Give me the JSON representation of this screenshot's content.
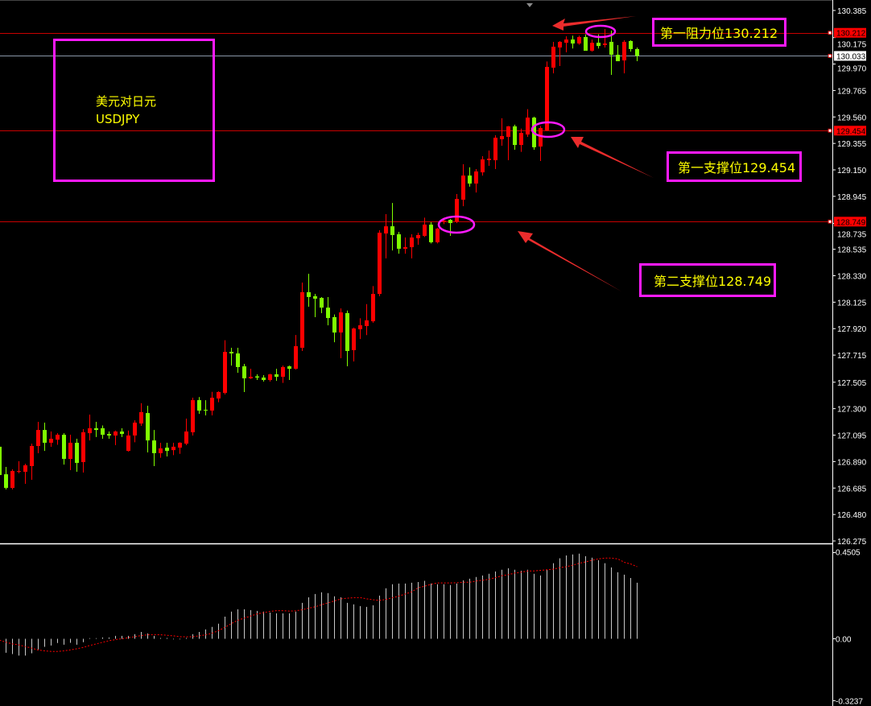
{
  "chart_data": [
    {
      "type": "candlestick",
      "symbol_label": "美元对日元",
      "symbol_code": "USDJPY",
      "ylim": [
        126.275,
        130.385
      ],
      "y_ticks": [
        "130.385",
        "130.175",
        "129.970",
        "129.765",
        "129.560",
        "129.355",
        "129.150",
        "128.945",
        "128.735",
        "128.535",
        "128.330",
        "128.125",
        "127.920",
        "127.715",
        "127.505",
        "127.300",
        "127.095",
        "126.890",
        "126.685",
        "126.480",
        "126.275"
      ],
      "colors": {
        "bullish": "#ff0000",
        "bearish": "#80ff00",
        "background": "#000000",
        "level_line": "#c80000",
        "bid_line": "#8a97a8"
      },
      "candles_ohlc": [
        [
          127.005,
          127.02,
          126.76,
          126.786
        ],
        [
          126.792,
          126.849,
          126.674,
          126.686
        ],
        [
          126.686,
          126.83,
          126.674,
          126.817
        ],
        [
          126.815,
          126.893,
          126.8,
          126.817
        ],
        [
          126.811,
          126.873,
          126.718,
          126.861
        ],
        [
          126.855,
          127.029,
          126.749,
          127.011
        ],
        [
          127.011,
          127.198,
          126.955,
          127.135
        ],
        [
          127.135,
          127.192,
          126.973,
          127.036
        ],
        [
          127.036,
          127.123,
          127.005,
          127.067
        ],
        [
          127.06,
          127.11,
          127.02,
          127.098
        ],
        [
          127.098,
          127.11,
          126.867,
          126.911
        ],
        [
          126.911,
          127.098,
          126.824,
          127.036
        ],
        [
          127.036,
          127.067,
          126.811,
          126.88
        ],
        [
          126.886,
          127.142,
          126.805,
          127.117
        ],
        [
          127.11,
          127.254,
          127.054,
          127.148
        ],
        [
          127.148,
          127.198,
          127.08,
          127.135
        ],
        [
          127.148,
          127.17,
          127.067,
          127.098
        ],
        [
          127.104,
          127.123,
          127.067,
          127.092
        ],
        [
          127.092,
          127.13,
          127.017,
          127.123
        ],
        [
          127.123,
          127.148,
          127.08,
          127.104
        ],
        [
          126.973,
          127.13,
          126.967,
          127.092
        ],
        [
          127.092,
          127.21,
          127.04,
          127.192
        ],
        [
          127.185,
          127.342,
          127.167,
          127.273
        ],
        [
          127.266,
          127.323,
          126.961,
          127.054
        ],
        [
          127.054,
          127.135,
          126.855,
          126.955
        ],
        [
          126.955,
          127.036,
          126.92,
          126.992
        ],
        [
          126.998,
          127.036,
          126.93,
          126.973
        ],
        [
          126.979,
          127.036,
          126.94,
          127.005
        ],
        [
          126.998,
          127.04,
          126.95,
          127.036
        ],
        [
          127.029,
          127.223,
          127.017,
          127.123
        ],
        [
          127.117,
          127.385,
          127.092,
          127.366
        ],
        [
          127.366,
          127.39,
          127.26,
          127.285
        ],
        [
          127.291,
          127.366,
          127.248,
          127.285
        ],
        [
          127.285,
          127.43,
          127.248,
          127.385
        ],
        [
          127.379,
          127.435,
          127.35,
          127.429
        ],
        [
          127.422,
          127.83,
          127.41,
          127.74
        ],
        [
          127.74,
          127.772,
          127.634,
          127.728
        ],
        [
          127.728,
          127.772,
          127.578,
          127.622
        ],
        [
          127.628,
          127.647,
          127.429,
          127.535
        ],
        [
          127.535,
          127.609,
          127.53,
          127.547
        ],
        [
          127.55,
          127.566,
          127.522,
          127.541
        ],
        [
          127.541,
          127.56,
          127.51,
          127.522
        ],
        [
          127.522,
          127.57,
          127.51,
          127.566
        ],
        [
          127.566,
          127.609,
          127.515,
          127.547
        ],
        [
          127.547,
          127.634,
          127.5,
          127.622
        ],
        [
          127.628,
          127.634,
          127.522,
          127.609
        ],
        [
          127.609,
          127.871,
          127.603,
          127.784
        ],
        [
          127.772,
          128.277,
          127.747,
          128.202
        ],
        [
          128.202,
          128.345,
          128.09,
          128.165
        ],
        [
          128.171,
          128.189,
          128.009,
          128.152
        ],
        [
          128.158,
          128.165,
          128.04,
          128.083
        ],
        [
          128.083,
          128.165,
          127.946,
          128.002
        ],
        [
          128.009,
          128.03,
          127.815,
          127.89
        ],
        [
          127.89,
          128.077,
          127.691,
          128.046
        ],
        [
          128.04,
          128.06,
          127.628,
          127.747
        ],
        [
          127.753,
          127.928,
          127.666,
          127.921
        ],
        [
          127.915,
          128.0,
          127.84,
          127.946
        ],
        [
          127.94,
          128.11,
          127.87,
          127.984
        ],
        [
          127.977,
          128.25,
          127.966,
          128.189
        ],
        [
          128.189,
          128.682,
          128.171,
          128.663
        ],
        [
          128.657,
          128.807,
          128.464,
          128.713
        ],
        [
          128.713,
          128.894,
          128.526,
          128.645
        ],
        [
          128.651,
          128.67,
          128.501,
          128.539
        ],
        [
          128.539,
          128.626,
          128.501,
          128.551
        ],
        [
          128.551,
          128.651,
          128.464,
          128.626
        ],
        [
          128.62,
          128.663,
          128.57,
          128.645
        ],
        [
          128.639,
          128.78,
          128.63,
          128.726
        ],
        [
          128.726,
          128.745,
          128.58,
          128.589
        ],
        [
          128.589,
          128.7,
          128.58,
          128.695
        ],
        [
          128.745,
          128.78,
          128.73,
          128.757
        ],
        [
          128.763,
          128.77,
          128.639,
          128.738
        ],
        [
          128.751,
          128.963,
          128.738,
          128.925
        ],
        [
          128.919,
          129.194,
          128.869,
          129.106
        ],
        [
          129.106,
          129.17,
          129.02,
          129.044
        ],
        [
          129.044,
          129.156,
          128.975,
          129.138
        ],
        [
          129.131,
          129.256,
          129.106,
          129.231
        ],
        [
          129.225,
          129.3,
          129.181,
          129.237
        ],
        [
          129.225,
          129.418,
          129.156,
          129.399
        ],
        [
          129.387,
          129.55,
          129.337,
          129.412
        ],
        [
          129.406,
          129.49,
          129.225,
          129.487
        ],
        [
          129.487,
          129.5,
          129.306,
          129.343
        ],
        [
          129.343,
          129.47,
          129.29,
          129.437
        ],
        [
          129.424,
          129.62,
          129.406,
          129.555
        ],
        [
          129.555,
          129.562,
          129.306,
          129.325
        ],
        [
          129.331,
          129.49,
          129.219,
          129.474
        ],
        [
          129.456,
          129.99,
          129.45,
          129.948
        ],
        [
          129.942,
          130.142,
          129.898,
          130.104
        ],
        [
          130.098,
          130.148,
          129.955,
          130.142
        ],
        [
          130.135,
          130.185,
          130.061,
          130.16
        ],
        [
          130.16,
          130.19,
          130.09,
          130.129
        ],
        [
          130.129,
          130.19,
          130.12,
          130.179
        ],
        [
          130.179,
          130.2,
          130.073,
          130.073
        ],
        [
          130.073,
          130.16,
          130.066,
          130.135
        ],
        [
          130.135,
          130.2,
          130.09,
          130.11
        ],
        [
          130.117,
          130.241,
          130.098,
          130.129
        ],
        [
          130.142,
          130.229,
          129.886,
          130.042
        ],
        [
          130.042,
          130.117,
          129.992,
          129.992
        ],
        [
          129.998,
          130.154,
          129.898,
          130.142
        ],
        [
          130.148,
          130.154,
          130.066,
          130.086
        ],
        [
          130.086,
          130.098,
          129.992,
          130.033
        ]
      ],
      "levels": [
        {
          "value": 130.212,
          "label": "130.212",
          "style": "level"
        },
        {
          "value": 130.033,
          "label": "130.033",
          "style": "bid"
        },
        {
          "value": 129.454,
          "label": "129.454",
          "style": "level"
        },
        {
          "value": 128.749,
          "label": "128.749",
          "style": "level"
        }
      ],
      "annotations": {
        "resistance_1": "第一阻力位130.212",
        "support_1": "第一支撑位129.454",
        "support_2": "第二支撑位128.749"
      }
    },
    {
      "type": "bar+line",
      "ylim": [
        -0.3237,
        0.4505
      ],
      "y_ticks": [
        "0.4505",
        "0.00",
        "-0.3237"
      ],
      "colors": {
        "histogram": "#c8c8c8",
        "signal": "#ff0000"
      },
      "histogram": [
        0.0,
        -0.073,
        -0.08,
        -0.088,
        -0.088,
        -0.076,
        -0.056,
        -0.042,
        -0.035,
        -0.022,
        -0.031,
        -0.021,
        -0.031,
        -0.018,
        0.003,
        0.003,
        0.007,
        0.007,
        0.015,
        0.015,
        0.015,
        0.024,
        0.036,
        0.028,
        0.015,
        0.004,
        0.004,
        -0.003,
        -0.003,
        0.004,
        0.024,
        0.036,
        0.049,
        0.062,
        0.079,
        0.116,
        0.142,
        0.154,
        0.154,
        0.15,
        0.146,
        0.142,
        0.137,
        0.133,
        0.133,
        0.133,
        0.142,
        0.188,
        0.217,
        0.234,
        0.243,
        0.239,
        0.222,
        0.217,
        0.188,
        0.18,
        0.171,
        0.167,
        0.175,
        0.226,
        0.264,
        0.285,
        0.289,
        0.289,
        0.293,
        0.297,
        0.303,
        0.289,
        0.285,
        0.285,
        0.281,
        0.289,
        0.306,
        0.314,
        0.323,
        0.331,
        0.34,
        0.352,
        0.361,
        0.369,
        0.361,
        0.356,
        0.361,
        0.34,
        0.331,
        0.361,
        0.395,
        0.421,
        0.436,
        0.441,
        0.445,
        0.432,
        0.424,
        0.411,
        0.395,
        0.373,
        0.348,
        0.335,
        0.318,
        0.293
      ],
      "signal": [
        -0.007,
        -0.018,
        -0.027,
        -0.032,
        -0.041,
        -0.049,
        -0.059,
        -0.063,
        -0.066,
        -0.066,
        -0.063,
        -0.058,
        -0.052,
        -0.045,
        -0.035,
        -0.027,
        -0.018,
        -0.01,
        -0.004,
        0.0,
        0.006,
        0.011,
        0.017,
        0.021,
        0.022,
        0.021,
        0.018,
        0.015,
        0.011,
        0.01,
        0.011,
        0.015,
        0.021,
        0.029,
        0.043,
        0.06,
        0.08,
        0.097,
        0.108,
        0.119,
        0.13,
        0.137,
        0.143,
        0.147,
        0.147,
        0.145,
        0.146,
        0.152,
        0.16,
        0.167,
        0.178,
        0.188,
        0.198,
        0.209,
        0.212,
        0.215,
        0.215,
        0.209,
        0.204,
        0.201,
        0.206,
        0.215,
        0.223,
        0.234,
        0.246,
        0.267,
        0.275,
        0.285,
        0.292,
        0.292,
        0.292,
        0.293,
        0.296,
        0.296,
        0.302,
        0.306,
        0.311,
        0.32,
        0.33,
        0.335,
        0.344,
        0.348,
        0.355,
        0.355,
        0.358,
        0.361,
        0.364,
        0.372,
        0.377,
        0.385,
        0.395,
        0.402,
        0.411,
        0.418,
        0.422,
        0.422,
        0.418,
        0.4,
        0.391,
        0.377
      ]
    }
  ]
}
